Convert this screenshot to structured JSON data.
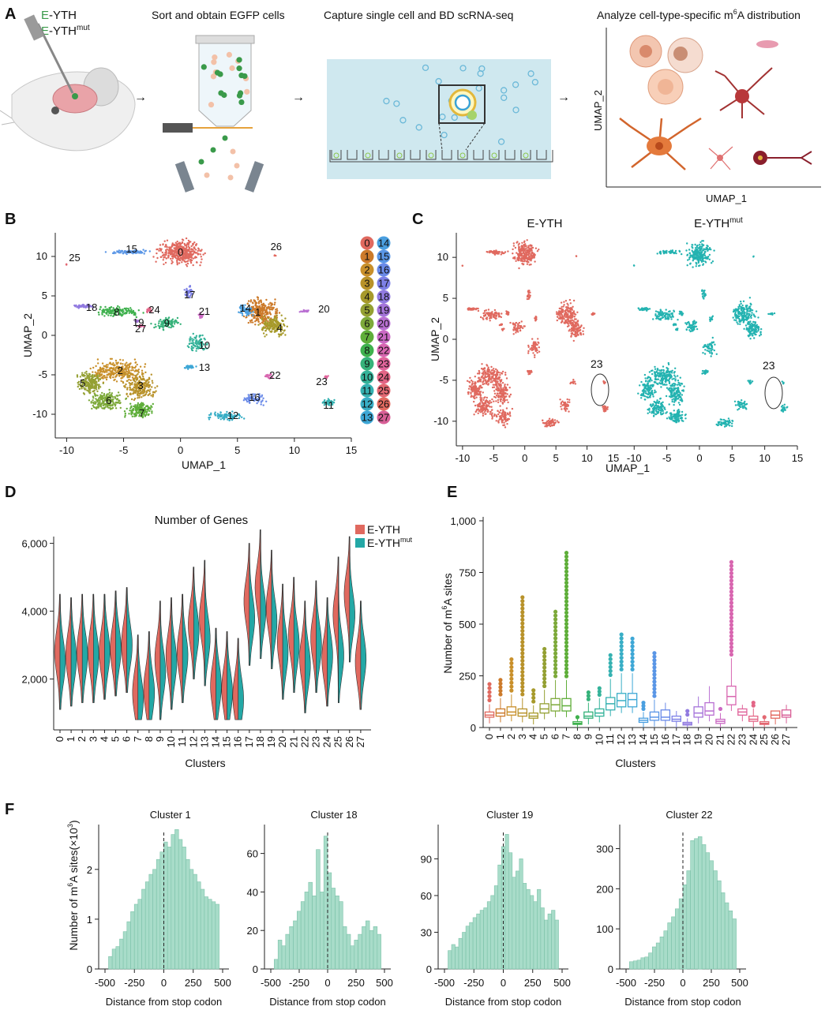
{
  "panel_letters": [
    "A",
    "B",
    "C",
    "D",
    "E",
    "F"
  ],
  "panelA": {
    "constructs": [
      "E-YTH",
      "E-YTH"
    ],
    "construct_sup": "mut",
    "steps": [
      "Sort and obtain EGFP cells",
      "Capture single cell and BD scRNA-seq",
      "Analyze cell-type-specific m"
    ],
    "step4_sup": "6",
    "step4_tail": "A distribution",
    "axis_y": "UMAP_2",
    "axis_x": "UMAP_1",
    "colors": {
      "egfp": "#3a9a4a",
      "droplet": "#9fd0e3",
      "chip": "#cfe8ef",
      "cell": "#e8b69a"
    }
  },
  "panelB": {
    "xlabel": "UMAP_1",
    "ylabel": "UMAP_2",
    "xticks": [
      "-10",
      "-5",
      "0",
      "5",
      "10",
      "15"
    ],
    "yticks": [
      "10",
      "5",
      "0",
      "-5",
      "-10"
    ],
    "legend_left": [
      "0",
      "1",
      "2",
      "3",
      "4",
      "5",
      "6",
      "7",
      "8",
      "9",
      "10",
      "11",
      "12",
      "13"
    ],
    "legend_right": [
      "14",
      "15",
      "16",
      "17",
      "18",
      "19",
      "20",
      "21",
      "22",
      "23",
      "24",
      "25",
      "26",
      "27"
    ],
    "cluster_labels": [
      "0",
      "1",
      "2",
      "3",
      "4",
      "5",
      "6",
      "7",
      "8",
      "9",
      "10",
      "11",
      "12",
      "13",
      "14",
      "15",
      "16",
      "17",
      "18",
      "19",
      "20",
      "21",
      "22",
      "23",
      "24",
      "25",
      "26",
      "27"
    ],
    "palette": [
      "#e0695f",
      "#cc7a2a",
      "#c9902b",
      "#b8922a",
      "#a79a2b",
      "#94a033",
      "#7da93a",
      "#5fae3a",
      "#3fb14e",
      "#36b27a",
      "#35b39a",
      "#35b1b1",
      "#38aec6",
      "#3ea7d6",
      "#4a9fe0",
      "#5a96e6",
      "#6a8ae8",
      "#7d80e6",
      "#917ae0",
      "#a574da",
      "#b96fd2",
      "#cb6ac4",
      "#d866b0",
      "#e0649b",
      "#e36586",
      "#e36872",
      "#e36a60",
      "#d85f97"
    ]
  },
  "panelC": {
    "title_left": "E-YTH",
    "title_right": "E-YTH",
    "title_right_sup": "mut",
    "xlabel": "UMAP_1",
    "ylabel": "UMAP_2",
    "xticks": [
      "-10",
      "-5",
      "0",
      "5",
      "10",
      "15"
    ],
    "yticks": [
      "10",
      "5",
      "0",
      "-5",
      "-10"
    ],
    "circle_label": "23",
    "colors": {
      "left": "#e0695f",
      "right": "#24b3b1"
    }
  },
  "chart_data": [
    {
      "type": "violin",
      "panel": "D",
      "title": "Number of Genes",
      "xlabel": "Clusters",
      "ylabel": "",
      "ylim": [
        500,
        6200
      ],
      "yticks": [
        "2,000",
        "4,000",
        "6,000"
      ],
      "categories": [
        "0",
        "1",
        "2",
        "3",
        "4",
        "5",
        "6",
        "7",
        "8",
        "9",
        "10",
        "11",
        "12",
        "13",
        "14",
        "15",
        "16",
        "17",
        "18",
        "19",
        "20",
        "21",
        "22",
        "23",
        "24",
        "25",
        "26",
        "27"
      ],
      "legend": [
        "E-YTH",
        "E-YTH"
      ],
      "legend_sup": "mut",
      "series": [
        {
          "color": "#e0695f",
          "median": [
            2800,
            2700,
            2800,
            2800,
            2800,
            2900,
            3000,
            1600,
            1700,
            2600,
            2700,
            2800,
            3600,
            3800,
            1800,
            1700,
            1500,
            4300,
            4700,
            4100,
            3100,
            3300,
            2600,
            3200,
            2600,
            3900,
            4500,
            2500
          ]
        },
        {
          "color": "#24a8a6",
          "median": [
            2500,
            2600,
            2700,
            2700,
            2800,
            2900,
            3000,
            1400,
            1600,
            2200,
            2500,
            2700,
            3400,
            3200,
            1800,
            1600,
            1400,
            3800,
            4000,
            3700,
            2800,
            3000,
            2400,
            3000,
            2700,
            2700,
            3900,
            2600
          ]
        }
      ]
    },
    {
      "type": "box",
      "panel": "E",
      "xlabel": "Clusters",
      "ylabel": "Number of m",
      "ylabel_sup": "6",
      "ylabel_tail": "A sites",
      "ylim": [
        0,
        1000
      ],
      "yticks": [
        "0",
        "250",
        "500",
        "750",
        "1,000"
      ],
      "categories": [
        "0",
        "1",
        "2",
        "3",
        "4",
        "5",
        "6",
        "7",
        "8",
        "9",
        "10",
        "11",
        "12",
        "13",
        "14",
        "15",
        "16",
        "17",
        "18",
        "19",
        "20",
        "21",
        "22",
        "23",
        "24",
        "25",
        "26",
        "27"
      ],
      "q1": [
        50,
        55,
        60,
        55,
        45,
        70,
        80,
        80,
        15,
        45,
        55,
        85,
        100,
        100,
        25,
        35,
        35,
        30,
        12,
        50,
        60,
        20,
        110,
        60,
        30,
        15,
        45,
        50
      ],
      "median": [
        60,
        70,
        75,
        70,
        55,
        90,
        110,
        105,
        20,
        55,
        70,
        115,
        130,
        135,
        35,
        50,
        50,
        40,
        18,
        70,
        80,
        30,
        150,
        75,
        40,
        20,
        60,
        60
      ],
      "q3": [
        75,
        90,
        100,
        90,
        70,
        115,
        140,
        140,
        28,
        75,
        90,
        145,
        165,
        165,
        45,
        75,
        85,
        55,
        25,
        100,
        120,
        40,
        200,
        90,
        55,
        28,
        80,
        85
      ],
      "max_out": [
        210,
        230,
        330,
        630,
        180,
        380,
        560,
        845,
        50,
        170,
        190,
        350,
        450,
        430,
        120,
        360,
        120,
        80,
        80,
        150,
        200,
        90,
        800,
        110,
        120,
        50,
        80,
        110
      ]
    },
    {
      "type": "bar",
      "panel": "F",
      "subplots": [
        {
          "title": "Cluster 1",
          "ylabel": "Number of m",
          "ylabel_sup": "6",
          "ylabel_tail": "A sites(×10",
          "ylabel_sup2": "3",
          "ylabel_end": ")",
          "yticks": [
            "0",
            "1",
            "2"
          ],
          "ylim": [
            0,
            2.9
          ],
          "values": [
            0.25,
            0.4,
            0.45,
            0.6,
            0.75,
            0.95,
            1.15,
            1.3,
            1.4,
            1.6,
            1.75,
            1.9,
            2.0,
            2.2,
            2.35,
            2.55,
            2.45,
            2.7,
            2.8,
            2.6,
            2.45,
            2.2,
            2.0,
            1.9,
            1.75,
            1.6,
            1.45,
            1.4,
            1.35,
            1.3
          ]
        },
        {
          "title": "Cluster 18",
          "yticks": [
            "0",
            "20",
            "40",
            "60"
          ],
          "ylim": [
            0,
            75
          ],
          "values": [
            5,
            15,
            12,
            18,
            22,
            25,
            30,
            35,
            40,
            45,
            38,
            62,
            40,
            69,
            50,
            42,
            38,
            35,
            22,
            18,
            12,
            15,
            18,
            22,
            25,
            20,
            22,
            18
          ]
        },
        {
          "title": "Cluster 19",
          "yticks": [
            "0",
            "30",
            "60",
            "90"
          ],
          "ylim": [
            0,
            118
          ],
          "values": [
            15,
            20,
            18,
            25,
            30,
            35,
            38,
            42,
            45,
            48,
            50,
            55,
            60,
            68,
            85,
            100,
            110,
            95,
            75,
            80,
            90,
            70,
            65,
            60,
            55,
            65,
            50,
            40,
            45,
            48,
            40
          ]
        },
        {
          "title": "Cluster 22",
          "yticks": [
            "0",
            "100",
            "200",
            "300"
          ],
          "ylim": [
            0,
            360
          ],
          "values": [
            18,
            20,
            22,
            28,
            30,
            40,
            55,
            65,
            80,
            95,
            115,
            130,
            150,
            175,
            210,
            245,
            320,
            325,
            330,
            310,
            290,
            270,
            245,
            220,
            190,
            165,
            145,
            125
          ]
        }
      ],
      "xlabel": "Distance from stop codon",
      "xticks": [
        "-500",
        "-250",
        "0",
        "250",
        "500"
      ],
      "bar_color": "#a8dcc9",
      "bar_edge": "#7cc2a9"
    }
  ]
}
